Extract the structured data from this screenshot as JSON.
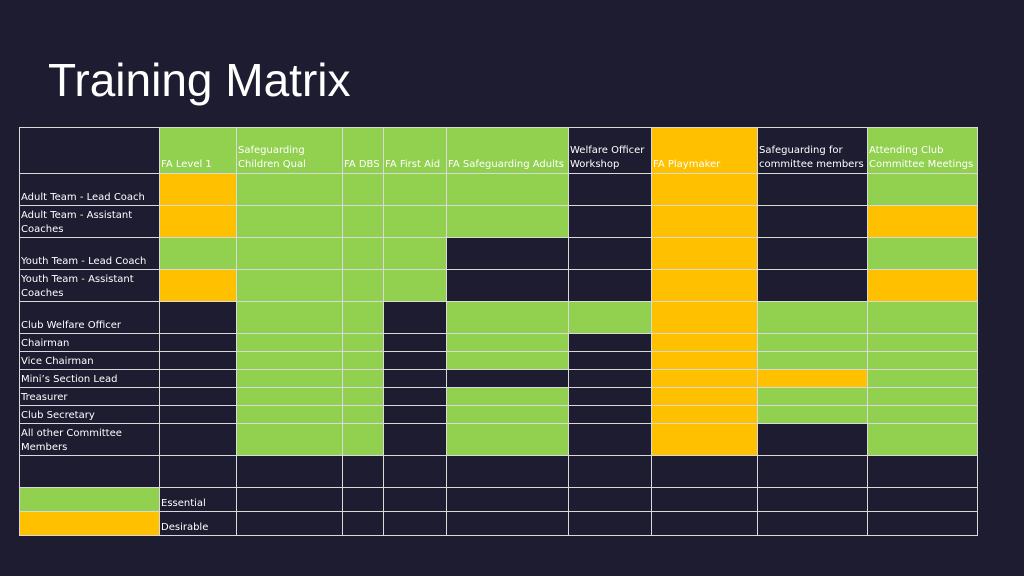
{
  "title": "Training Matrix",
  "colors": {
    "essential": "#92d050",
    "desirable": "#ffc000",
    "background": "#1e1c31"
  },
  "columns": [
    "FA Level 1",
    "Safeguarding Children Qual",
    "FA DBS",
    "FA First Aid",
    "FA Safeguarding Adults",
    "Welfare Officer Workshop",
    "FA Playmaker",
    "Safeguarding for committee members",
    "Attending Club Committee Meetings"
  ],
  "header_cells": [
    "E",
    "E",
    "E",
    "E",
    "E",
    "",
    "D",
    "",
    "E"
  ],
  "rows": [
    {
      "role": "Adult Team - Lead Coach",
      "cells": [
        "D",
        "E",
        "E",
        "E",
        "E",
        "",
        "D",
        "",
        "E"
      ]
    },
    {
      "role": "Adult Team - Assistant Coaches",
      "cells": [
        "D",
        "E",
        "E",
        "E",
        "E",
        "",
        "D",
        "",
        "D"
      ]
    },
    {
      "role": "Youth Team - Lead Coach",
      "cells": [
        "E",
        "E",
        "E",
        "E",
        "",
        "",
        "D",
        "",
        "E"
      ]
    },
    {
      "role": "Youth Team - Assistant Coaches",
      "cells": [
        "D",
        "E",
        "E",
        "E",
        "",
        "",
        "D",
        "",
        "D"
      ]
    },
    {
      "role": "Club Welfare Officer",
      "cells": [
        "",
        "E",
        "E",
        "",
        "E",
        "E",
        "D",
        "E",
        "E"
      ]
    },
    {
      "role": "Chairman",
      "cells": [
        "",
        "E",
        "E",
        "",
        "E",
        "",
        "D",
        "E",
        "E"
      ]
    },
    {
      "role": "Vice Chairman",
      "cells": [
        "",
        "E",
        "E",
        "",
        "E",
        "",
        "D",
        "E",
        "E"
      ]
    },
    {
      "role": "Mini’s Section Lead",
      "cells": [
        "",
        "E",
        "E",
        "",
        "",
        "",
        "D",
        "D",
        "E"
      ]
    },
    {
      "role": "Treasurer",
      "cells": [
        "",
        "E",
        "E",
        "",
        "E",
        "",
        "D",
        "E",
        "E"
      ]
    },
    {
      "role": "Club Secretary",
      "cells": [
        "",
        "E",
        "E",
        "",
        "E",
        "",
        "D",
        "E",
        "E"
      ]
    },
    {
      "role": "All other Committee Members",
      "cells": [
        "",
        "E",
        "E",
        "",
        "E",
        "",
        "D",
        "",
        "E"
      ]
    },
    {
      "role": "",
      "cells": [
        "",
        "",
        "",
        "",
        "",
        "",
        "",
        "",
        ""
      ]
    }
  ],
  "legend": [
    {
      "code": "E",
      "label": "Essential"
    },
    {
      "code": "D",
      "label": "Desirable"
    }
  ]
}
